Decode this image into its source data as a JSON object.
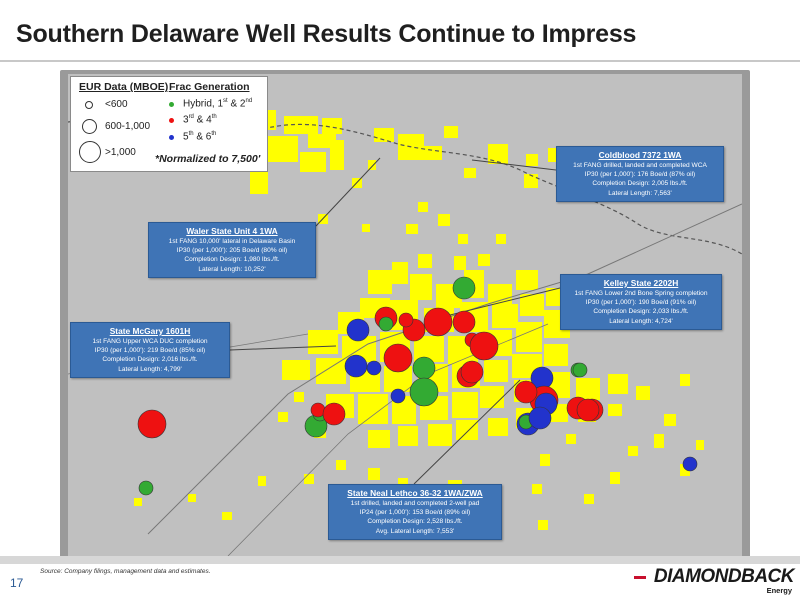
{
  "title": "Southern Delaware Well Results Continue to Impress",
  "page_number": "17",
  "source_note": "Source:  Company filings, management data and estimates.",
  "logo": {
    "name": "DIAMONDBACK",
    "sub": "Energy"
  },
  "colors": {
    "acreage": "#ffff00",
    "map_bg": "#c0c0c0",
    "callout": "#3f74b6",
    "gen_hybrid": "#33aa33",
    "gen_3_4": "#ee1111",
    "gen_5_6": "#2233cc",
    "roads": "#777777"
  },
  "legend": {
    "eur_header": "EUR Data (MBOE)",
    "frac_header": "Frac Generation",
    "eur_classes": [
      {
        "label": "<600"
      },
      {
        "label": "600-1,000"
      },
      {
        "label": ">1,000"
      }
    ],
    "frac_classes": [
      {
        "label": "Hybrid, 1st & 2nd",
        "base": "Hybrid, 1",
        "s1": "st",
        "mid": " & 2",
        "s2": "nd",
        "color_key": "gen_hybrid"
      },
      {
        "label": "3rd & 4th",
        "base": "3",
        "s1": "rd",
        "mid": " & 4",
        "s2": "th",
        "color_key": "gen_3_4"
      },
      {
        "label": "5th & 6th",
        "base": "5",
        "s1": "th",
        "mid": " & 6",
        "s2": "th",
        "color_key": "gen_5_6"
      }
    ],
    "note": "*Normalized to 7,500'"
  },
  "callouts": {
    "coldblood": {
      "title": "Coldblood 7372 1WA",
      "lines": [
        "1st FANG drilled, landed and completed WCA",
        "IP30 (per 1,000'): 176 Boe/d (87% oil)",
        "Completion Design: 2,005 lbs./ft.",
        "Lateral Length: 7,563'"
      ]
    },
    "waler": {
      "title": "Waler State Unit 4 1WA",
      "lines": [
        "1st FANG 10,000' lateral in Delaware Basin",
        "IP30 (per 1,000'): 205 Boe/d (80% oil)",
        "Completion Design: 1,980 lbs./ft.",
        "Lateral Length: 10,252'"
      ]
    },
    "kelley": {
      "title": "Kelley State 2202H",
      "lines": [
        "1st FANG Lower 2nd Bone Spring completion",
        "IP30 (per 1,000'): 190 Boe/d (91% oil)",
        "Completion Design: 2,033 lbs./ft.",
        "Lateral Length: 4,724'"
      ]
    },
    "mcgary": {
      "title": "State McGary 1601H",
      "lines": [
        "1st FANG Upper WCA DUC completion",
        "IP30 (per 1,000'): 219 Boe/d (85% oil)",
        "Completion Design: 2,016 lbs./ft.",
        "Lateral Length: 4,799'"
      ]
    },
    "lethco": {
      "title": "State Neal Lethco 36-32 1WA/ZWA",
      "lines": [
        "1st drilled, landed and completed 2-well pad",
        "IP24 (per 1,000'): 153 Boe/d (89% oil)",
        "Completion Design: 2,528 lbs./ft.",
        "Avg. Lateral Length: 7,553'"
      ]
    }
  },
  "wells": [
    {
      "gen": "gen_3_4",
      "eur": ">1,000"
    },
    {
      "gen": "gen_hybrid",
      "eur": "600-1,000"
    },
    {
      "gen": "gen_hybrid",
      "eur": "<600"
    },
    {
      "gen": "gen_3_4",
      "eur": "<600"
    },
    {
      "gen": "gen_3_4",
      "eur": "600-1,000"
    },
    {
      "gen": "gen_5_6",
      "eur": "600-1,000"
    },
    {
      "gen": "gen_3_4",
      "eur": "600-1,000"
    },
    {
      "gen": "gen_3_4",
      "eur": "600-1,000"
    },
    {
      "gen": "gen_hybrid",
      "eur": "<600"
    },
    {
      "gen": "gen_3_4",
      "eur": "<600"
    },
    {
      "gen": "gen_3_4",
      "eur": ">1,000"
    },
    {
      "gen": "gen_hybrid",
      "eur": "600-1,000"
    },
    {
      "gen": "gen_3_4",
      "eur": "600-1,000"
    },
    {
      "gen": "gen_3_4",
      "eur": "<600"
    },
    {
      "gen": "gen_5_6",
      "eur": "600-1,000"
    },
    {
      "gen": "gen_3_4",
      "eur": ">1,000"
    },
    {
      "gen": "gen_5_6",
      "eur": "<600"
    },
    {
      "gen": "gen_hybrid",
      "eur": "600-1,000"
    },
    {
      "gen": "gen_3_4",
      "eur": "600-1,000"
    },
    {
      "gen": "gen_5_6",
      "eur": "<600"
    },
    {
      "gen": "gen_3_4",
      "eur": "600-1,000"
    },
    {
      "gen": "gen_hybrid",
      "eur": ">1,000"
    },
    {
      "gen": "gen_3_4",
      "eur": ">1,000"
    },
    {
      "gen": "gen_3_4",
      "eur": "600-1,000"
    },
    {
      "gen": "gen_5_6",
      "eur": "600-1,000"
    },
    {
      "gen": "gen_3_4",
      "eur": ">1,000"
    },
    {
      "gen": "gen_3_4",
      "eur": "600-1,000"
    },
    {
      "gen": "gen_3_4",
      "eur": "600-1,000"
    },
    {
      "gen": "gen_5_6",
      "eur": "600-1,000"
    },
    {
      "gen": "gen_hybrid",
      "eur": "<600"
    },
    {
      "gen": "gen_3_4",
      "eur": "600-1,000"
    },
    {
      "gen": "gen_hybrid",
      "eur": "<600"
    },
    {
      "gen": "gen_3_4",
      "eur": "600-1,000"
    },
    {
      "gen": "gen_5_6",
      "eur": "600-1,000"
    },
    {
      "gen": "gen_5_6",
      "eur": "<600"
    },
    {
      "gen": "gen_hybrid",
      "eur": "<600"
    },
    {
      "gen": "gen_5_6",
      "eur": "600-1,000"
    },
    {
      "gen": "gen_hybrid",
      "eur": "<600"
    }
  ]
}
